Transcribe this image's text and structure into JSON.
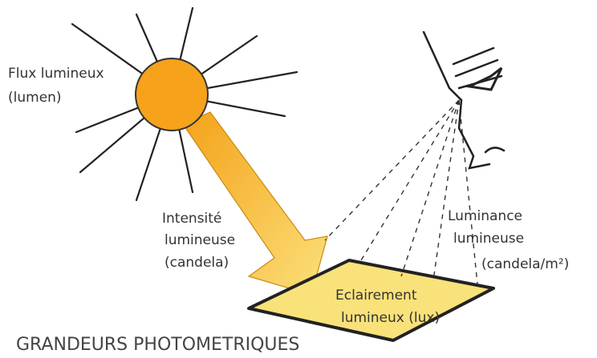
{
  "diagram": {
    "title": "GRANDEURS PHOTOMETRIQUES",
    "labels": [
      {
        "name": "flux",
        "lines": [
          "Flux lumineux",
          "(lumen)"
        ]
      },
      {
        "name": "intensite",
        "lines": [
          "Intensité",
          "lumineuse",
          "(candela)"
        ]
      },
      {
        "name": "luminance",
        "lines": [
          "Luminance",
          "lumineuse",
          "(candela/m²)"
        ]
      },
      {
        "name": "eclairement",
        "lines": [
          "Eclairement",
          "lumineux (lux)"
        ]
      }
    ]
  }
}
